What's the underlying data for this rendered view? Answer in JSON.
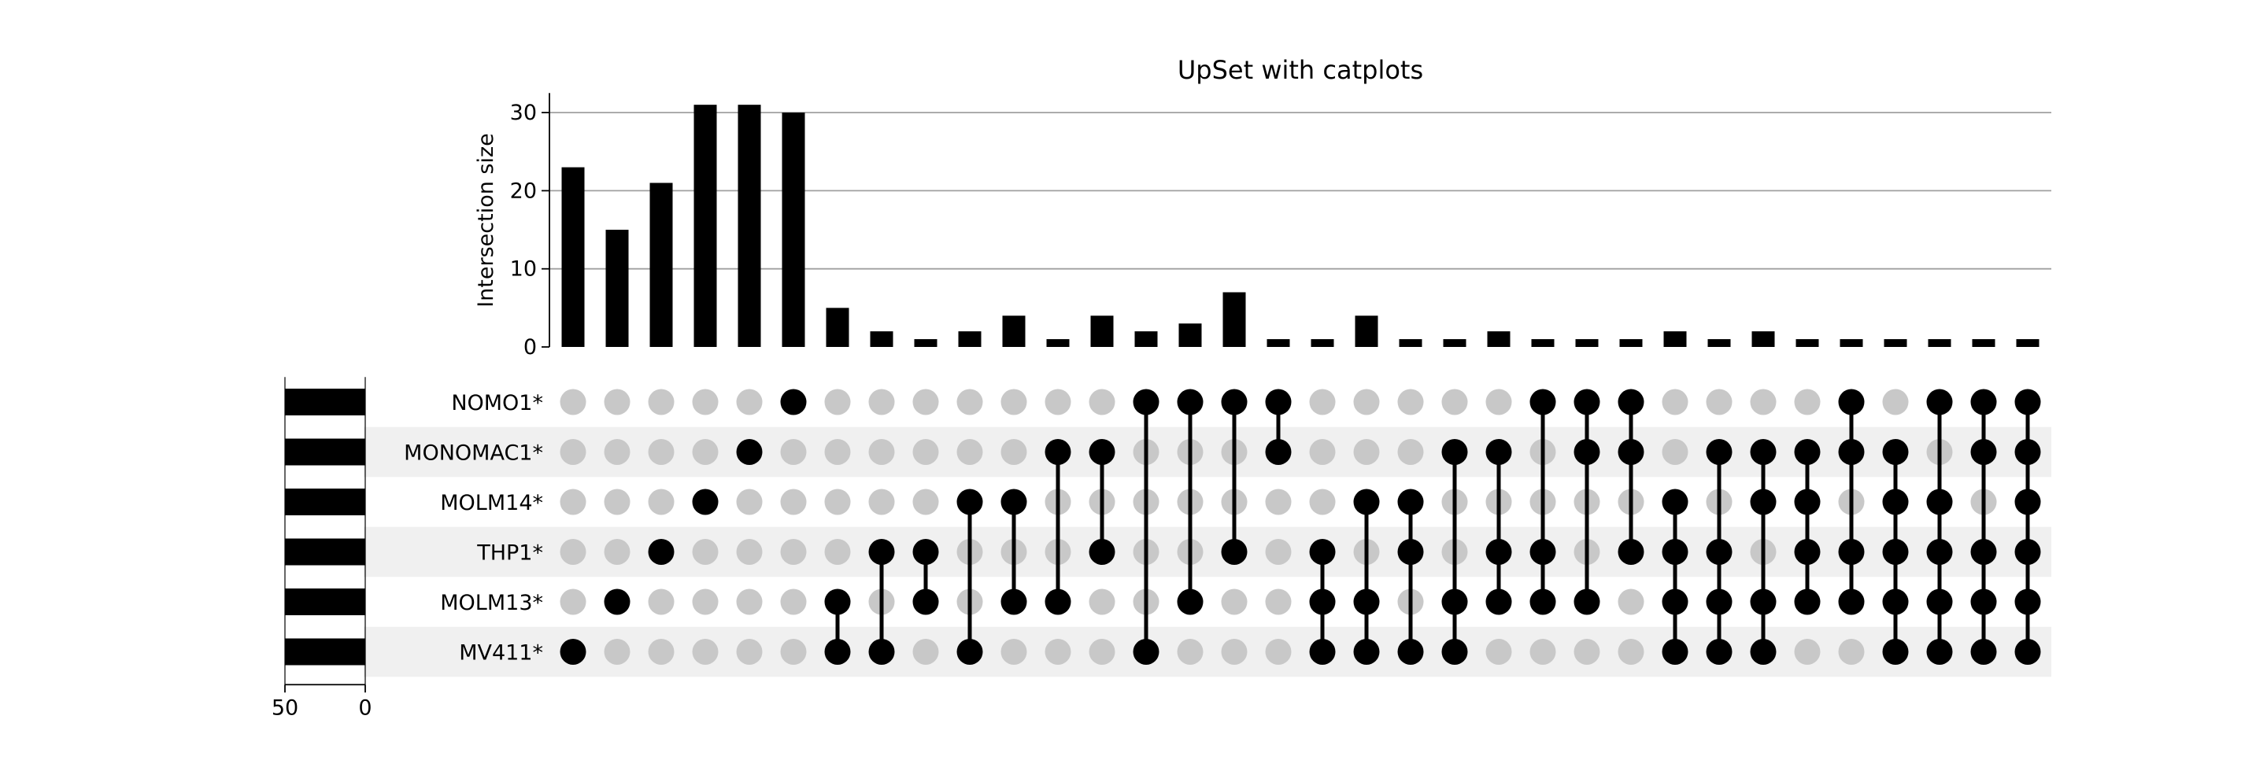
{
  "chart_data": {
    "type": "upset",
    "title": "UpSet with catplots",
    "ylabel": "Intersection size",
    "ylim": [
      0,
      32.5
    ],
    "yticks": [
      0,
      10,
      20,
      30
    ],
    "grid": true,
    "sets": [
      "NOMO1*",
      "MONOMAC1*",
      "MOLM14*",
      "THP1*",
      "MOLM13*",
      "MV411*"
    ],
    "set_sizes": [
      50,
      50,
      50,
      50,
      50,
      50
    ],
    "set_size_ticks": [
      50,
      0
    ],
    "intersections": [
      {
        "members": [
          "MV411*"
        ],
        "size": 23
      },
      {
        "members": [
          "MOLM13*"
        ],
        "size": 15
      },
      {
        "members": [
          "THP1*"
        ],
        "size": 21
      },
      {
        "members": [
          "MOLM14*"
        ],
        "size": 31
      },
      {
        "members": [
          "MONOMAC1*"
        ],
        "size": 31
      },
      {
        "members": [
          "NOMO1*"
        ],
        "size": 30
      },
      {
        "members": [
          "MOLM13*",
          "MV411*"
        ],
        "size": 5
      },
      {
        "members": [
          "THP1*",
          "MV411*"
        ],
        "size": 2
      },
      {
        "members": [
          "THP1*",
          "MOLM13*"
        ],
        "size": 1
      },
      {
        "members": [
          "MOLM14*",
          "MV411*"
        ],
        "size": 2
      },
      {
        "members": [
          "MOLM14*",
          "MOLM13*"
        ],
        "size": 4
      },
      {
        "members": [
          "MONOMAC1*",
          "MOLM13*"
        ],
        "size": 1
      },
      {
        "members": [
          "MONOMAC1*",
          "THP1*"
        ],
        "size": 4
      },
      {
        "members": [
          "NOMO1*",
          "MV411*"
        ],
        "size": 2
      },
      {
        "members": [
          "NOMO1*",
          "MOLM13*"
        ],
        "size": 3
      },
      {
        "members": [
          "NOMO1*",
          "THP1*"
        ],
        "size": 7
      },
      {
        "members": [
          "NOMO1*",
          "MONOMAC1*"
        ],
        "size": 1
      },
      {
        "members": [
          "THP1*",
          "MOLM13*",
          "MV411*"
        ],
        "size": 1
      },
      {
        "members": [
          "MOLM14*",
          "MOLM13*",
          "MV411*"
        ],
        "size": 4
      },
      {
        "members": [
          "MOLM14*",
          "THP1*",
          "MV411*"
        ],
        "size": 1
      },
      {
        "members": [
          "MONOMAC1*",
          "MOLM13*",
          "MV411*"
        ],
        "size": 1
      },
      {
        "members": [
          "MONOMAC1*",
          "THP1*",
          "MOLM13*"
        ],
        "size": 2
      },
      {
        "members": [
          "NOMO1*",
          "THP1*",
          "MOLM13*"
        ],
        "size": 1
      },
      {
        "members": [
          "NOMO1*",
          "MONOMAC1*",
          "MOLM13*"
        ],
        "size": 1
      },
      {
        "members": [
          "NOMO1*",
          "MONOMAC1*",
          "THP1*"
        ],
        "size": 1
      },
      {
        "members": [
          "MOLM14*",
          "THP1*",
          "MOLM13*",
          "MV411*"
        ],
        "size": 2
      },
      {
        "members": [
          "MONOMAC1*",
          "THP1*",
          "MOLM13*",
          "MV411*"
        ],
        "size": 1
      },
      {
        "members": [
          "MONOMAC1*",
          "MOLM14*",
          "MOLM13*",
          "MV411*"
        ],
        "size": 2
      },
      {
        "members": [
          "MONOMAC1*",
          "MOLM14*",
          "THP1*",
          "MOLM13*"
        ],
        "size": 1
      },
      {
        "members": [
          "NOMO1*",
          "MONOMAC1*",
          "THP1*",
          "MOLM13*"
        ],
        "size": 1
      },
      {
        "members": [
          "MONOMAC1*",
          "MOLM14*",
          "THP1*",
          "MOLM13*",
          "MV411*"
        ],
        "size": 1
      },
      {
        "members": [
          "NOMO1*",
          "MOLM14*",
          "THP1*",
          "MOLM13*",
          "MV411*"
        ],
        "size": 1
      },
      {
        "members": [
          "NOMO1*",
          "MONOMAC1*",
          "THP1*",
          "MOLM13*",
          "MV411*"
        ],
        "size": 1
      },
      {
        "members": [
          "NOMO1*",
          "MONOMAC1*",
          "MOLM14*",
          "THP1*",
          "MOLM13*",
          "MV411*"
        ],
        "size": 1
      }
    ],
    "colors": {
      "bar": "#000000",
      "dot_active": "#000000",
      "dot_inactive": "#c8c8c8",
      "stripe": "#f0f0f0",
      "grid": "#a0a0a0"
    }
  }
}
